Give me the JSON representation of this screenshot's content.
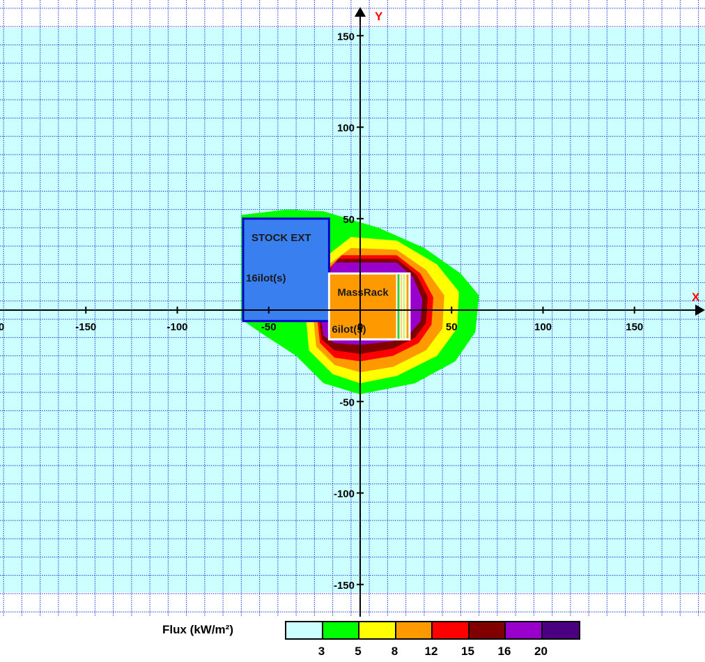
{
  "chart_data": {
    "type": "heatmap",
    "title": "",
    "xlabel": "X",
    "ylabel": "Y",
    "xlim": [
      -200,
      185
    ],
    "ylim": [
      -165,
      160
    ],
    "grid": true,
    "x_ticks": [
      -150,
      -100,
      -50,
      0,
      50,
      100,
      150
    ],
    "x_tick_labels": [
      "-150",
      "-100",
      "-50",
      "0",
      "50",
      "100",
      "150"
    ],
    "x_edge_label": "0",
    "y_ticks": [
      150,
      100,
      50,
      -50,
      -100,
      -150
    ],
    "y_tick_labels": [
      "150",
      "100",
      "50",
      "-50",
      "-100",
      "-150"
    ],
    "legend": {
      "title": "Flux (kW/m²)",
      "placement": "bottom",
      "colors": [
        "#ccffff",
        "#00ff00",
        "#ffff00",
        "#ff9900",
        "#ff0000",
        "#800000",
        "#9900cc",
        "#4b0082"
      ],
      "thresholds": [
        "3",
        "5",
        "8",
        "12",
        "15",
        "16",
        "20"
      ]
    },
    "background_color": "#ccffff",
    "grid_color": "#1f3bd6",
    "contours": [
      {
        "level": "5",
        "color": "#00ff00",
        "points": [
          [
            -65,
            52
          ],
          [
            -40,
            55
          ],
          [
            -20,
            54
          ],
          [
            10,
            45
          ],
          [
            35,
            34
          ],
          [
            55,
            20
          ],
          [
            65,
            8
          ],
          [
            63,
            -12
          ],
          [
            52,
            -28
          ],
          [
            30,
            -40
          ],
          [
            0,
            -46
          ],
          [
            -20,
            -40
          ],
          [
            -35,
            -25
          ],
          [
            -55,
            -12
          ],
          [
            -65,
            -5
          ]
        ]
      },
      {
        "level": "8",
        "color": "#ffff00",
        "points": [
          [
            -5,
            40
          ],
          [
            20,
            38
          ],
          [
            42,
            25
          ],
          [
            54,
            10
          ],
          [
            53,
            -10
          ],
          [
            42,
            -25
          ],
          [
            20,
            -36
          ],
          [
            0,
            -40
          ],
          [
            -15,
            -35
          ],
          [
            -28,
            -22
          ],
          [
            -30,
            0
          ],
          [
            -28,
            22
          ]
        ]
      },
      {
        "level": "12",
        "color": "#ff9900",
        "points": [
          [
            -5,
            34
          ],
          [
            20,
            33
          ],
          [
            36,
            22
          ],
          [
            46,
            8
          ],
          [
            45,
            -10
          ],
          [
            36,
            -22
          ],
          [
            18,
            -31
          ],
          [
            0,
            -34
          ],
          [
            -14,
            -30
          ],
          [
            -24,
            -20
          ],
          [
            -26,
            0
          ],
          [
            -24,
            20
          ]
        ]
      },
      {
        "level": "15",
        "color": "#ff0000",
        "points": [
          [
            -10,
            30
          ],
          [
            20,
            30
          ],
          [
            33,
            20
          ],
          [
            40,
            7
          ],
          [
            39,
            -8
          ],
          [
            32,
            -18
          ],
          [
            18,
            -25
          ],
          [
            0,
            -28
          ],
          [
            -14,
            -26
          ],
          [
            -22,
            -18
          ],
          [
            -24,
            0
          ],
          [
            -22,
            18
          ]
        ]
      },
      {
        "level": "16",
        "color": "#800000",
        "points": [
          [
            -12,
            28
          ],
          [
            20,
            28
          ],
          [
            31,
            19
          ],
          [
            37,
            7
          ],
          [
            36,
            -7
          ],
          [
            30,
            -15
          ],
          [
            18,
            -21
          ],
          [
            0,
            -24
          ],
          [
            -14,
            -22
          ],
          [
            -21,
            -16
          ],
          [
            -23,
            0
          ],
          [
            -21,
            16
          ]
        ]
      },
      {
        "level": "20",
        "color": "#9900cc",
        "points": [
          [
            -14,
            26
          ],
          [
            20,
            26
          ],
          [
            29,
            18
          ],
          [
            34,
            6
          ],
          [
            33,
            -6
          ],
          [
            28,
            -12
          ],
          [
            18,
            -17
          ],
          [
            0,
            -19
          ],
          [
            -14,
            -18
          ],
          [
            -20,
            -14
          ],
          [
            -22,
            0
          ],
          [
            -20,
            14
          ]
        ]
      }
    ],
    "zones": [
      {
        "name": "STOCK EXT",
        "sublabel": "16ilot(s)",
        "x": [
          -64,
          -17
        ],
        "y": [
          -6,
          50
        ],
        "color": "#3a7ff0",
        "border": "#0000cc"
      },
      {
        "name": "MassRack",
        "sublabel": "6ilot(s)",
        "x": [
          -17,
          27
        ],
        "y": [
          -16,
          20
        ],
        "color": "#ff9900",
        "border": "#ffffff"
      }
    ]
  }
}
